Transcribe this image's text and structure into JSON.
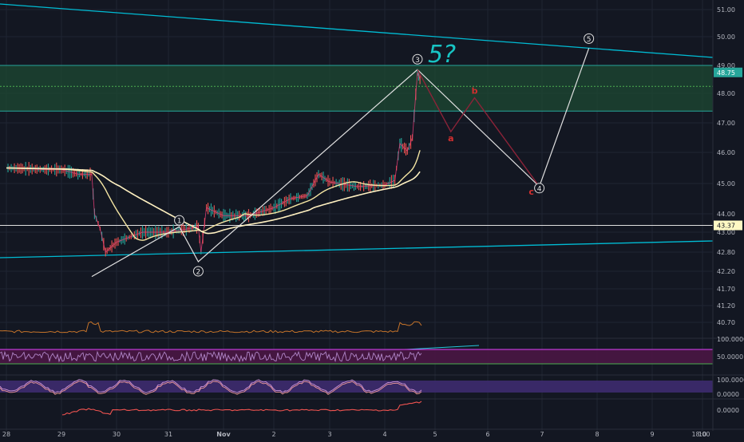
{
  "chart_data": {
    "type": "line",
    "title": "",
    "annotation_text": "5?",
    "price_axis": {
      "ticks": [
        "51.00",
        "50.00",
        "49.00",
        "48.00",
        "47.00",
        "46.00",
        "45.00",
        "44.00",
        "43.00",
        "42.80",
        "42.20",
        "41.70",
        "41.20",
        "40.70"
      ],
      "current_price": "48.75",
      "level_price": "43.37"
    },
    "x_axis": {
      "ticks": [
        "28",
        "29",
        "30",
        "31",
        "Nov",
        "2",
        "3",
        "4",
        "5",
        "6",
        "7",
        "8",
        "9",
        "10",
        "18:00"
      ]
    },
    "lower_panes": {
      "rsi_ticks": [
        "100.0000",
        "50.0000"
      ],
      "stoch_ticks": [
        "100.0000",
        "0.0000"
      ],
      "macd_ticks": [
        "0.0000"
      ]
    },
    "wave_labels": {
      "w1": "1",
      "w2": "2",
      "w3": "3",
      "w4": "4",
      "w5": "5",
      "a": "a",
      "b": "b",
      "c": "c"
    },
    "series": [
      {
        "role": "price",
        "points": [
          [
            "28",
            45.5
          ],
          [
            "28.7",
            45.45
          ],
          [
            "29.0",
            45.45
          ],
          [
            "29.3",
            45.3
          ],
          [
            "29.55",
            45.3
          ],
          [
            "29.6",
            44.0
          ],
          [
            "29.7",
            43.2
          ],
          [
            "29.8",
            42.8
          ],
          [
            "30.0",
            42.9
          ],
          [
            "30.5",
            43.0
          ],
          [
            "31.0",
            43.0
          ],
          [
            "31.3",
            43.15
          ],
          [
            "31.55",
            43.3
          ],
          [
            "31.6",
            42.8
          ],
          [
            "31.7",
            44.2
          ],
          [
            "Nov",
            43.9
          ],
          [
            "1.5",
            43.9
          ],
          [
            "2.0",
            44.2
          ],
          [
            "2.3",
            44.5
          ],
          [
            "2.6",
            44.6
          ],
          [
            "2.8",
            45.3
          ],
          [
            "3.0",
            45.05
          ],
          [
            "3.5",
            44.9
          ],
          [
            "4.0",
            44.95
          ],
          [
            "4.2",
            45.1
          ],
          [
            "4.3",
            46.3
          ],
          [
            "4.45",
            46.05
          ],
          [
            "4.55",
            46.5
          ],
          [
            "4.65",
            48.75
          ],
          [
            "4.7",
            48.5
          ]
        ]
      },
      {
        "role": "elliott_projection",
        "points": [
          [
            "29.55",
            42.05
          ],
          [
            "31.2",
            43.3
          ],
          [
            "31.55",
            42.5
          ],
          [
            "4.65",
            48.85
          ],
          [
            "5.3",
            46.7
          ],
          [
            "5.75",
            47.85
          ],
          [
            "6.95",
            44.9
          ],
          [
            "7.85",
            49.6
          ]
        ]
      },
      {
        "role": "abc_correction",
        "points": [
          [
            "4.65",
            48.85
          ],
          [
            "5.3",
            46.7
          ],
          [
            "5.75",
            47.85
          ],
          [
            "6.95",
            44.9
          ]
        ]
      }
    ],
    "levels": [
      49.0,
      48.25,
      47.4,
      43.37
    ],
    "ylim": [
      40.4,
      51.3
    ]
  },
  "colors": {
    "background": "#131722",
    "grid": "#1f2433",
    "trendline": "#00bcd4",
    "zone_fill": "#1e4a33",
    "zone_line": "#26a69a",
    "wave_line": "#e0e0e0",
    "correction": "#8b2338",
    "label_red": "#d32f2f",
    "candle_up": "#26a69a",
    "candle_down": "#ef5350",
    "ema_fast": "#f5e6a3",
    "ema_slow": "#fff1c1",
    "annotation": "#18c4c4",
    "volume": "#c4732a",
    "rsi_fill": "#4a1644",
    "rsi_line": "#e040fb",
    "stoch_fill": "#3b2a6b",
    "axis_text": "#b2b5be"
  }
}
